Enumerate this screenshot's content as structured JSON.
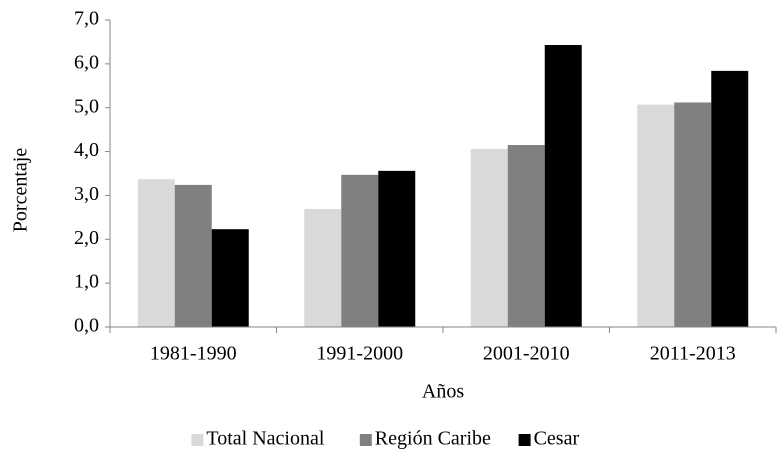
{
  "chart_data": {
    "type": "bar",
    "x_label": "Años",
    "y_label": "Porcentaje",
    "categories": [
      "1981-1990",
      "1991-2000",
      "2001-2010",
      "2011-2013"
    ],
    "series": [
      {
        "name": "Total Nacional",
        "color": "#d9d9d9",
        "values": [
          3.37,
          2.69,
          4.06,
          5.07
        ]
      },
      {
        "name": "Región Caribe",
        "color": "#808080",
        "values": [
          3.24,
          3.47,
          4.15,
          5.12
        ]
      },
      {
        "name": "Cesar",
        "color": "#000000",
        "values": [
          2.23,
          3.56,
          6.43,
          5.84
        ]
      }
    ],
    "ylim": [
      0,
      7
    ],
    "yticks": [
      {
        "value": 0,
        "label": "0,0"
      },
      {
        "value": 1,
        "label": "1,0"
      },
      {
        "value": 2,
        "label": "2,0"
      },
      {
        "value": 3,
        "label": "3,0"
      },
      {
        "value": 4,
        "label": "4,0"
      },
      {
        "value": 5,
        "label": "5,0"
      },
      {
        "value": 6,
        "label": "6,0"
      },
      {
        "value": 7,
        "label": "7,0"
      }
    ],
    "grid": false,
    "legend": "bottom"
  }
}
